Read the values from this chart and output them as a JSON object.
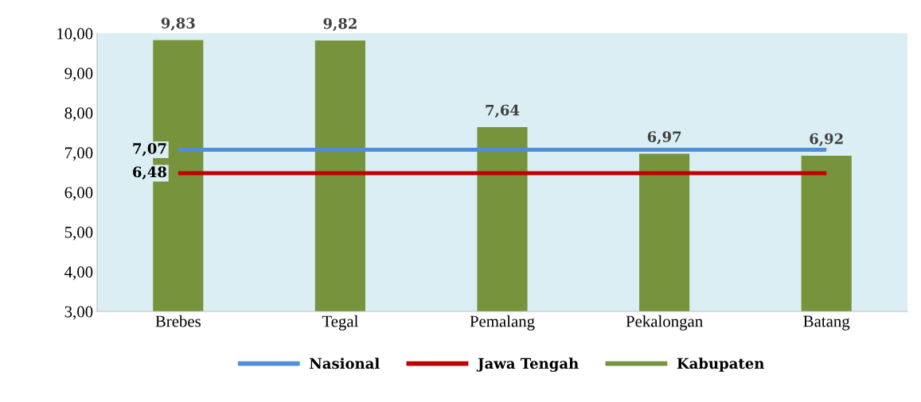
{
  "chart_data": {
    "type": "bar",
    "categories": [
      "Brebes",
      "Tegal",
      "Pemalang",
      "Pekalongan",
      "Batang"
    ],
    "series": [
      {
        "name": "Nasional",
        "type": "line",
        "color": "#4f8fd6",
        "values": [
          7.07,
          7.07,
          7.07,
          7.07,
          7.07
        ],
        "value_labels": [
          "7,07",
          null,
          null,
          null,
          null
        ]
      },
      {
        "name": "Jawa Tengah",
        "type": "line",
        "color": "#c00000",
        "values": [
          6.48,
          6.48,
          6.48,
          6.48,
          6.48
        ],
        "value_labels": [
          "6,48",
          null,
          null,
          null,
          null
        ]
      },
      {
        "name": "Kabupaten",
        "color": "#77933c",
        "values": [
          9.83,
          9.82,
          7.64,
          6.97,
          6.92
        ],
        "value_labels": [
          "9,83",
          "9,82",
          "7,64",
          "6,97",
          "6,92"
        ]
      }
    ],
    "ylim": [
      3,
      10
    ],
    "yticks": [
      {
        "value": 3,
        "label": "3,00"
      },
      {
        "value": 4,
        "label": "4,00"
      },
      {
        "value": 5,
        "label": "5,00"
      },
      {
        "value": 6,
        "label": "6,00"
      },
      {
        "value": 7,
        "label": "7,00"
      },
      {
        "value": 8,
        "label": "8,00"
      },
      {
        "value": 9,
        "label": "9,00"
      },
      {
        "value": 10,
        "label": "10,00"
      }
    ],
    "grid": false,
    "legend": "bottom"
  }
}
